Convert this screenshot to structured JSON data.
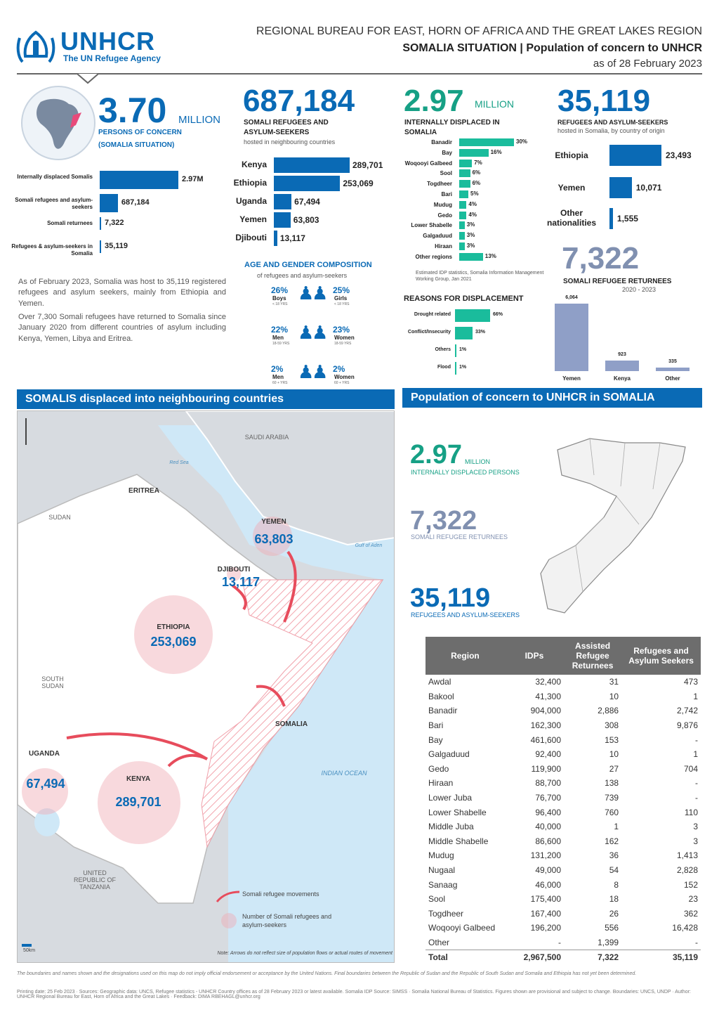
{
  "header": {
    "logo_name": "UNHCR",
    "logo_tagline": "The UN Refugee Agency",
    "line1": "REGIONAL BUREAU FOR EAST, HORN OF AFRICA AND THE GREAT LAKES REGION",
    "line2_bold": "SOMALIA SITUATION",
    "line2_rest": " | Population of concern to UNHCR",
    "line3": "as of 28 February 2023"
  },
  "kpi1": {
    "number": "3.70",
    "unit": "MILLION",
    "caption1": "PERSONS OF CONCERN",
    "caption2": "(SOMALIA SITUATION)",
    "bars": [
      {
        "label": "Internally displaced Somalis",
        "value": 2970000,
        "text": "2.97M"
      },
      {
        "label": "Somali refugees and asylum-seekers",
        "value": 687184,
        "text": "687,184"
      },
      {
        "label": "Somali returnees",
        "value": 7322,
        "text": "7,322"
      },
      {
        "label": "Refugees & asylum-seekers in Somalia",
        "value": 35119,
        "text": "35,119"
      }
    ],
    "para1": "As of February 2023, Somalia was host to 35,119 registered refugees and asylum seekers, mainly from Ethiopia and Yemen.",
    "para2": "Over 7,300 Somali refugees have returned to Somalia since January 2020 from different countries of asylum including Kenya, Yemen, Libya and Eritrea."
  },
  "kpi2": {
    "number": "687,184",
    "caption": "SOMALI REFUGEES AND ASYLUM-SEEKERS",
    "sub": "hosted in neighbouring countries",
    "bars": [
      {
        "label": "Kenya",
        "value": 289701,
        "text": "289,701"
      },
      {
        "label": "Ethiopia",
        "value": 253069,
        "text": "253,069"
      },
      {
        "label": "Uganda",
        "value": 67494,
        "text": "67,494"
      },
      {
        "label": "Yemen",
        "value": 63803,
        "text": "63,803"
      },
      {
        "label": "Djibouti",
        "value": 13117,
        "text": "13,117"
      }
    ]
  },
  "age_gender": {
    "title": "AGE AND GENDER COMPOSITION",
    "sub": "of refugees and asylum-seekers",
    "rows": [
      {
        "left_pct": "26%",
        "left_lbl": "Boys",
        "left_age": "< 18 YRS",
        "right_pct": "25%",
        "right_lbl": "Girls",
        "right_age": "< 18 YRS"
      },
      {
        "left_pct": "22%",
        "left_lbl": "Men",
        "left_age": "18-59 YRS",
        "right_pct": "23%",
        "right_lbl": "Women",
        "right_age": "18-59 YRS"
      },
      {
        "left_pct": "2%",
        "left_lbl": "Men",
        "left_age": "60 + YRS",
        "right_pct": "2%",
        "right_lbl": "Women",
        "right_age": "60 + YRS"
      }
    ]
  },
  "kpi3": {
    "number": "2.97",
    "unit": "MILLION",
    "caption": "INTERNALLY DISPLACED IN SOMALIA",
    "bars": [
      {
        "label": "Banadir",
        "value": 30,
        "text": "30%"
      },
      {
        "label": "Bay",
        "value": 16,
        "text": "16%"
      },
      {
        "label": "Woqooyi Galbeed",
        "value": 7,
        "text": "7%"
      },
      {
        "label": "Sool",
        "value": 6,
        "text": "6%"
      },
      {
        "label": "Togdheer",
        "value": 6,
        "text": "6%"
      },
      {
        "label": "Bari",
        "value": 5,
        "text": "5%"
      },
      {
        "label": "Mudug",
        "value": 4,
        "text": "4%"
      },
      {
        "label": "Gedo",
        "value": 4,
        "text": "4%"
      },
      {
        "label": "Lower Shabelle",
        "value": 3,
        "text": "3%"
      },
      {
        "label": "Galgaduud",
        "value": 3,
        "text": "3%"
      },
      {
        "label": "Hiraan",
        "value": 3,
        "text": "3%"
      },
      {
        "label": "Other regions",
        "value": 13,
        "text": "13%"
      }
    ],
    "source": "Estimated IDP statistics, Somalia Information Management Working Group, Jan 2021",
    "reasons_title": "REASONS FOR DISPLACEMENT",
    "reasons": [
      {
        "label": "Drought related",
        "value": 66,
        "text": "66%"
      },
      {
        "label": "Conflict/Insecurity",
        "value": 33,
        "text": "33%"
      },
      {
        "label": "Others",
        "value": 1,
        "text": "1%"
      },
      {
        "label": "Flood",
        "value": 1,
        "text": "1%"
      }
    ]
  },
  "kpi4": {
    "number": "35,119",
    "caption": "REFUGEES AND ASYLUM-SEEKERS",
    "sub": "hosted in Somalia, by country of origin",
    "bars": [
      {
        "label": "Ethiopia",
        "value": 23493,
        "text": "23,493"
      },
      {
        "label": "Yemen",
        "value": 10071,
        "text": "10,071"
      },
      {
        "label": "Other nationalities",
        "value": 1555,
        "text": "1,555"
      }
    ]
  },
  "returnees": {
    "number": "7,322",
    "caption": "SOMALI REFUGEE RETURNEES",
    "sub": "2020 - 2023",
    "bars": [
      {
        "label": "Yemen",
        "value": 6064,
        "text": "6,064"
      },
      {
        "label": "Kenya",
        "value": 923,
        "text": "923"
      },
      {
        "label": "Other",
        "value": 335,
        "text": "335"
      }
    ]
  },
  "map_section": {
    "title": "SOMALIS displaced into neighbouring countries",
    "countries": {
      "saudi": "SAUDI ARABIA",
      "eritrea": "ERITREA",
      "sudan": "SUDAN",
      "south_sudan": "SOUTH SUDAN",
      "tanzania": "UNITED REPUBLIC OF TANZANIA",
      "somalia": "SOMALIA",
      "ocean": "INDIAN OCEAN",
      "redsea": "Red Sea",
      "gulf": "Gulf of Aden"
    },
    "bubbles": [
      {
        "name": "YEMEN",
        "value": "63,803"
      },
      {
        "name": "DJIBOUTI",
        "value": "13,117"
      },
      {
        "name": "ETHIOPIA",
        "value": "253,069"
      },
      {
        "name": "UGANDA",
        "value": "67,494"
      },
      {
        "name": "KENYA",
        "value": "289,701"
      }
    ],
    "legend1": "Somali refugee movements",
    "legend2": "Number of Somali refugees and asylum-seekers",
    "scale": "50km",
    "note": "Note: Arrows do not reflect size of population flows or actual routes of movement"
  },
  "somalia_section": {
    "title": "Population of concern to UNHCR in SOMALIA",
    "k1_number": "2.97",
    "k1_unit": "MILLION",
    "k1_caption": "INTERNALLY DISPLACED PERSONS",
    "k2_number": "7,322",
    "k2_caption": "SOMALI REFUGEE RETURNEES",
    "k3_number": "35,119",
    "k3_caption": "REFUGEES AND ASYLUM-SEEKERS",
    "table": {
      "headers": [
        "Region",
        "IDPs",
        "Assisted Refugee Returnees",
        "Refugees and Asylum Seekers"
      ],
      "rows": [
        [
          "Awdal",
          "32,400",
          "31",
          "473"
        ],
        [
          "Bakool",
          "41,300",
          "10",
          "1"
        ],
        [
          "Banadir",
          "904,000",
          "2,886",
          "2,742"
        ],
        [
          "Bari",
          "162,300",
          "308",
          "9,876"
        ],
        [
          "Bay",
          "461,600",
          "153",
          "-"
        ],
        [
          "Galgaduud",
          "92,400",
          "10",
          "1"
        ],
        [
          "Gedo",
          "119,900",
          "27",
          "704"
        ],
        [
          "Hiraan",
          "88,700",
          "138",
          "-"
        ],
        [
          "Lower Juba",
          "76,700",
          "739",
          "-"
        ],
        [
          "Lower Shabelle",
          "96,400",
          "760",
          "110"
        ],
        [
          "Middle Juba",
          "40,000",
          "1",
          "3"
        ],
        [
          "Middle Shabelle",
          "86,600",
          "162",
          "3"
        ],
        [
          "Mudug",
          "131,200",
          "36",
          "1,413"
        ],
        [
          "Nugaal",
          "49,000",
          "54",
          "2,828"
        ],
        [
          "Sanaag",
          "46,000",
          "8",
          "152"
        ],
        [
          "Sool",
          "175,400",
          "18",
          "23"
        ],
        [
          "Togdheer",
          "167,400",
          "26",
          "362"
        ],
        [
          "Woqooyi Galbeed",
          "196,200",
          "556",
          "16,428"
        ],
        [
          "Other",
          "-",
          "1,399",
          "-"
        ]
      ],
      "total": [
        "Total",
        "2,967,500",
        "7,322",
        "35,119"
      ]
    }
  },
  "footer": {
    "disclaimer": "The boundaries and names shown and the designations used on this map do not imply official endorsement or acceptance by the United Nations. Final boundaries between the Republic of Sudan and the Republic of South Sudan and Somalia and Ethiopia has not yet been determined.",
    "credits": "Printing date: 25 Feb 2023 · Sources: Geographic data: UNCS, Refugee statistics - UNHCR Country offices as of 28 February 2023 or latest available. Somalia IDP Source: SIMSS · Somalia National Bureau of Statistics. Figures shown are provisional and subject to change. Boundaries: UNCS, UNDP · Author: UNHCR Regional Bureau for East, Horn of Africa and the Great Lakes · Feedback: DIMA RBEHAGL@unhcr.org"
  },
  "colors": {
    "brand_blue": "#0a6ab5",
    "teal": "#1abc9c",
    "slate": "#8f9fc7",
    "pink": "#f0aab4",
    "grey": "#6d6d6d"
  }
}
